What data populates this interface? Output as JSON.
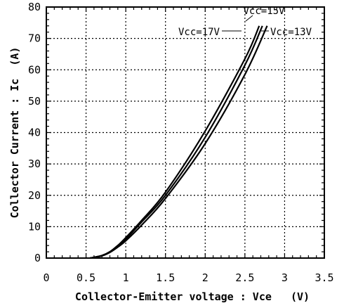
{
  "chart_data": {
    "type": "line",
    "title": "",
    "xlabel": "Collector-Emitter voltage : Vce   (V)",
    "ylabel": "Collector Current : Ic  (A)",
    "xlim": [
      0,
      3.5
    ],
    "ylim": [
      0,
      80
    ],
    "xticks": [
      "0",
      "0.5",
      "1",
      "1.5",
      "2",
      "2.5",
      "3",
      "3.5"
    ],
    "yticks": [
      "0",
      "10",
      "20",
      "30",
      "40",
      "50",
      "60",
      "70",
      "80"
    ],
    "grid": true,
    "grid_style": "dotted",
    "series": [
      {
        "name": "Vcc=17V",
        "points": [
          [
            0.55,
            0
          ],
          [
            0.7,
            0.8
          ],
          [
            0.8,
            2
          ],
          [
            0.9,
            4
          ],
          [
            1.0,
            6.5
          ],
          [
            1.2,
            12
          ],
          [
            1.5,
            21
          ],
          [
            2.0,
            40.5
          ],
          [
            2.5,
            63.5
          ],
          [
            2.68,
            74
          ]
        ]
      },
      {
        "name": "Vcc=15V",
        "points": [
          [
            0.55,
            0
          ],
          [
            0.7,
            0.8
          ],
          [
            0.8,
            2
          ],
          [
            0.9,
            4
          ],
          [
            1.0,
            6
          ],
          [
            1.2,
            11.5
          ],
          [
            1.5,
            20
          ],
          [
            2.0,
            38.5
          ],
          [
            2.5,
            61.5
          ],
          [
            2.72,
            74
          ]
        ]
      },
      {
        "name": "Vcc=13V",
        "points": [
          [
            0.55,
            0
          ],
          [
            0.7,
            0.7
          ],
          [
            0.8,
            1.8
          ],
          [
            0.9,
            3.5
          ],
          [
            1.0,
            5.5
          ],
          [
            1.2,
            10.5
          ],
          [
            1.5,
            19
          ],
          [
            2.0,
            36.5
          ],
          [
            2.5,
            58.5
          ],
          [
            2.78,
            74
          ]
        ]
      }
    ]
  }
}
